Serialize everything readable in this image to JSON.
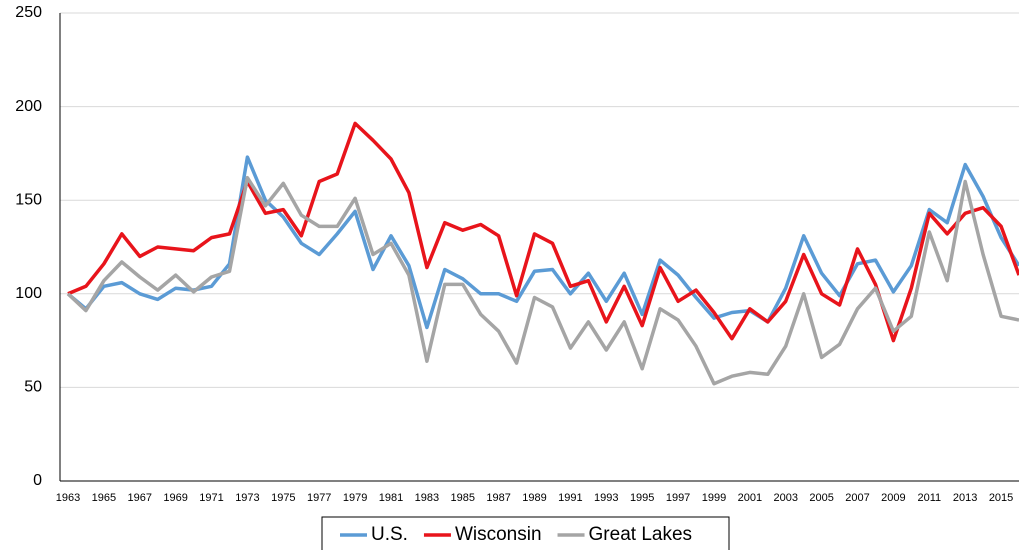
{
  "chart_data": {
    "type": "line",
    "categories": [
      "1963",
      null,
      "1965",
      null,
      "1967",
      null,
      "1969",
      null,
      "1971",
      null,
      "1973",
      null,
      "1975",
      null,
      "1977",
      null,
      "1979",
      null,
      "1981",
      null,
      "1983",
      null,
      "1985",
      null,
      "1987",
      null,
      "1989",
      null,
      "1991",
      null,
      "1993",
      null,
      "1995",
      null,
      "1997",
      null,
      "1999",
      null,
      "2001",
      null,
      "2003",
      null,
      "2005",
      null,
      "2007",
      null,
      "2009",
      null,
      "2011",
      null,
      "2013",
      null,
      "2015",
      null
    ],
    "series": [
      {
        "name": "U.S.",
        "color": "#5b9bd5",
        "values": [
          100,
          92,
          104,
          106,
          100,
          97,
          103,
          102,
          104,
          116,
          173,
          150,
          141,
          127,
          121,
          132,
          144,
          113,
          131,
          115,
          82,
          113,
          108,
          100,
          100,
          96,
          112,
          113,
          100,
          111,
          96,
          111,
          89,
          118,
          110,
          98,
          87,
          90,
          91,
          85,
          103,
          131,
          111,
          99,
          116,
          118,
          101,
          115,
          145,
          138,
          169,
          152,
          130,
          115
        ]
      },
      {
        "name": "Wisconsin",
        "color": "#e8141b",
        "values": [
          100,
          104,
          116,
          132,
          120,
          125,
          124,
          123,
          130,
          132,
          160,
          143,
          145,
          131,
          160,
          164,
          191,
          182,
          172,
          154,
          114,
          138,
          134,
          137,
          131,
          99,
          132,
          127,
          104,
          107,
          85,
          104,
          83,
          114,
          96,
          102,
          90,
          76,
          92,
          85,
          96,
          121,
          100,
          94,
          124,
          105,
          75,
          103,
          143,
          132,
          143,
          146,
          136,
          110
        ]
      },
      {
        "name": "Great Lakes",
        "color": "#a5a5a5",
        "values": [
          100,
          91,
          107,
          117,
          109,
          102,
          110,
          101,
          109,
          112,
          162,
          147,
          159,
          142,
          136,
          136,
          151,
          121,
          127,
          110,
          64,
          105,
          105,
          89,
          80,
          63,
          98,
          93,
          71,
          85,
          70,
          85,
          60,
          92,
          86,
          72,
          52,
          56,
          58,
          57,
          72,
          100,
          66,
          73,
          92,
          103,
          80,
          88,
          133,
          107,
          160,
          121,
          88,
          86
        ]
      }
    ],
    "ylim": [
      0,
      250
    ],
    "yticks": [
      0,
      50,
      100,
      150,
      200,
      250
    ],
    "grid": true,
    "legend": "bottom"
  }
}
